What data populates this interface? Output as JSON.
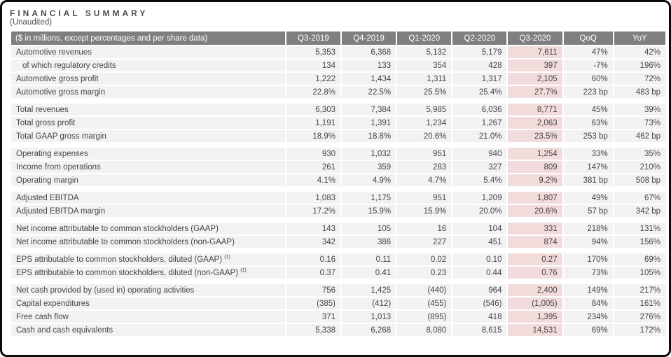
{
  "page": {
    "title": "FINANCIAL SUMMARY",
    "subtitle": "(Unaudited)"
  },
  "colors": {
    "frame_border": "#0b0b0b",
    "header_bg": "#7f7f7f",
    "header_text": "#ffffff",
    "row_bg": "#f2f2f2",
    "highlight_bg": "#f2dcdb",
    "text": "#454545",
    "title_text": "#4d4d4d"
  },
  "table": {
    "header": {
      "label": "($ in millions, except percentages and per share data)",
      "columns": [
        "Q3-2019",
        "Q4-2019",
        "Q1-2020",
        "Q2-2020",
        "Q3-2020",
        "QoQ",
        "YoY"
      ]
    },
    "highlight_column": "Q3-2020",
    "groups": [
      {
        "rows": [
          {
            "label": "Automotive revenues",
            "values": [
              "5,353",
              "6,368",
              "5,132",
              "5,179",
              "7,611",
              "47%",
              "42%"
            ]
          },
          {
            "label": "of which regulatory credits",
            "indent": true,
            "values": [
              "134",
              "133",
              "354",
              "428",
              "397",
              "-7%",
              "196%"
            ]
          },
          {
            "label": "Automotive gross profit",
            "values": [
              "1,222",
              "1,434",
              "1,311",
              "1,317",
              "2,105",
              "60%",
              "72%"
            ]
          },
          {
            "label": "Automotive gross margin",
            "values": [
              "22.8%",
              "22.5%",
              "25.5%",
              "25.4%",
              "27.7%",
              "223 bp",
              "483 bp"
            ]
          }
        ]
      },
      {
        "rows": [
          {
            "label": "Total revenues",
            "values": [
              "6,303",
              "7,384",
              "5,985",
              "6,036",
              "8,771",
              "45%",
              "39%"
            ]
          },
          {
            "label": "Total gross profit",
            "values": [
              "1,191",
              "1,391",
              "1,234",
              "1,267",
              "2,063",
              "63%",
              "73%"
            ]
          },
          {
            "label": "Total GAAP gross margin",
            "values": [
              "18.9%",
              "18.8%",
              "20.6%",
              "21.0%",
              "23.5%",
              "253 bp",
              "462 bp"
            ]
          }
        ]
      },
      {
        "rows": [
          {
            "label": "Operating expenses",
            "values": [
              "930",
              "1,032",
              "951",
              "940",
              "1,254",
              "33%",
              "35%"
            ]
          },
          {
            "label": "Income from operations",
            "values": [
              "261",
              "359",
              "283",
              "327",
              "809",
              "147%",
              "210%"
            ]
          },
          {
            "label": "Operating margin",
            "values": [
              "4.1%",
              "4.9%",
              "4.7%",
              "5.4%",
              "9.2%",
              "381 bp",
              "508 bp"
            ]
          }
        ]
      },
      {
        "rows": [
          {
            "label": "Adjusted EBITDA",
            "values": [
              "1,083",
              "1,175",
              "951",
              "1,209",
              "1,807",
              "49%",
              "67%"
            ]
          },
          {
            "label": "Adjusted EBITDA margin",
            "values": [
              "17.2%",
              "15.9%",
              "15.9%",
              "20.0%",
              "20.6%",
              "57 bp",
              "342 bp"
            ]
          }
        ]
      },
      {
        "rows": [
          {
            "label": "Net income attributable to common stockholders (GAAP)",
            "values": [
              "143",
              "105",
              "16",
              "104",
              "331",
              "218%",
              "131%"
            ]
          },
          {
            "label": "Net income attributable to common stockholders (non-GAAP)",
            "values": [
              "342",
              "386",
              "227",
              "451",
              "874",
              "94%",
              "156%"
            ]
          }
        ]
      },
      {
        "rows": [
          {
            "label": "EPS attributable to common stockholders, diluted (GAAP)",
            "footnote": "(1)",
            "values": [
              "0.16",
              "0.11",
              "0.02",
              "0.10",
              "0.27",
              "170%",
              "69%"
            ]
          },
          {
            "label": "EPS attributable to common stockholders, diluted (non-GAAP)",
            "footnote": "(1)",
            "values": [
              "0.37",
              "0.41",
              "0.23",
              "0.44",
              "0.76",
              "73%",
              "105%"
            ]
          }
        ]
      },
      {
        "rows": [
          {
            "label": "Net cash provided by (used in) operating activities",
            "values": [
              "756",
              "1,425",
              "(440)",
              "964",
              "2,400",
              "149%",
              "217%"
            ]
          },
          {
            "label": "Capital expenditures",
            "values": [
              "(385)",
              "(412)",
              "(455)",
              "(546)",
              "(1,005)",
              "84%",
              "161%"
            ]
          },
          {
            "label": "Free cash flow",
            "values": [
              "371",
              "1,013",
              "(895)",
              "418",
              "1,395",
              "234%",
              "276%"
            ]
          },
          {
            "label": "Cash and cash equivalents",
            "values": [
              "5,338",
              "6,268",
              "8,080",
              "8,615",
              "14,531",
              "69%",
              "172%"
            ]
          }
        ]
      }
    ]
  }
}
